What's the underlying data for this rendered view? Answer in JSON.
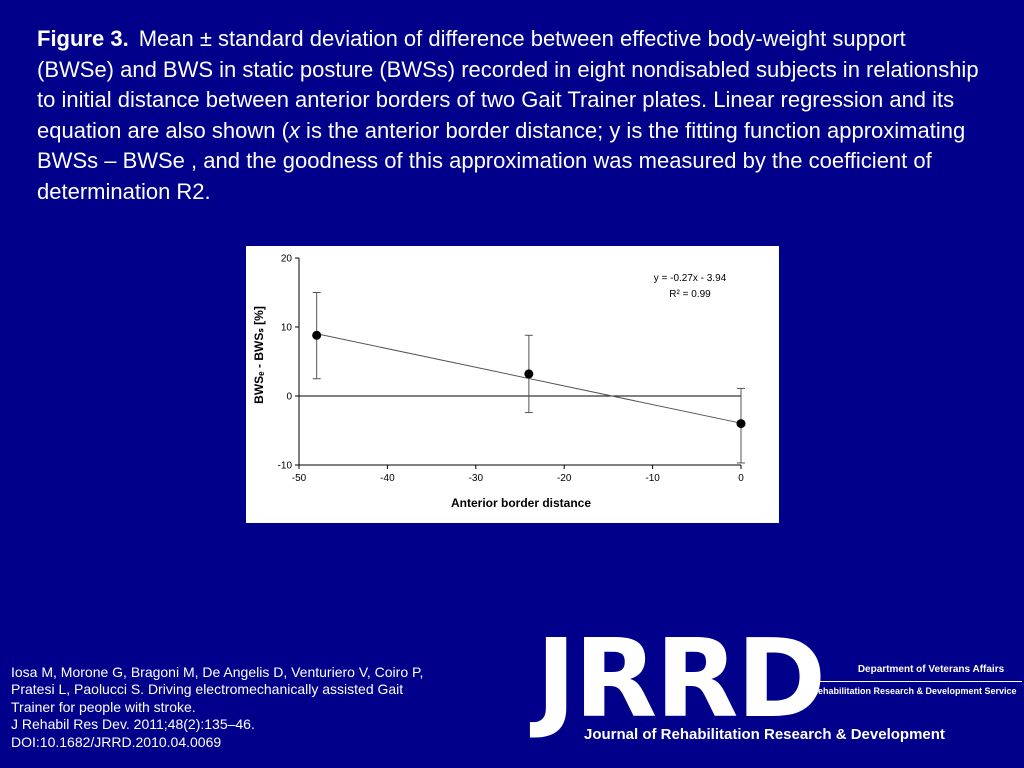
{
  "caption": {
    "label": "Figure  3.",
    "part1": "Mean ± standard deviation of difference between effective body-weight support (BWSe) and BWS in static posture (BWSs) recorded in eight nondisabled subjects in relationship to initial distance between anterior borders of two Gait Trainer plates. Linear regression and its equation are also shown (",
    "italic_x": "x",
    "part2": " is the anterior border distance; y is the fitting function approximating BWSs – BWSe , and the goodness of this approximation was measured by the coefficient of determination R2."
  },
  "chart_data": {
    "type": "scatter",
    "xlabel": "Anterior border distance",
    "ylabel": "BWSₑ - BWSₛ [%]",
    "xlim": [
      -50,
      0
    ],
    "ylim": [
      -10,
      20
    ],
    "xticks": [
      -50,
      -40,
      -30,
      -20,
      -10,
      0
    ],
    "yticks": [
      -10,
      0,
      10,
      20
    ],
    "points": [
      {
        "x": -48,
        "y": 8.8,
        "err_low": 2.5,
        "err_high": 15
      },
      {
        "x": -24,
        "y": 3.2,
        "err_low": -2.4,
        "err_high": 8.8
      },
      {
        "x": 0,
        "y": -4.0,
        "err_low": -9.7,
        "err_high": 1.1
      }
    ],
    "regression": {
      "slope": -0.27,
      "intercept": -3.94
    },
    "equation_text": "y = -0.27x - 3.94",
    "r2_text": "R² = 0.99",
    "grid": false,
    "zero_line": true
  },
  "citation": {
    "line1": "Iosa M, Morone G, Bragoni M, De Angelis D, Venturiero V, Coiro P,",
    "line2": "Pratesi L, Paolucci S. Driving electromechanically assisted Gait",
    "line3": "Trainer for people with stroke.",
    "line4": "J Rehabil Res Dev. 2011;48(2):135–46.",
    "line5": "DOI:10.1682/JRRD.2010.04.0069"
  },
  "logo": {
    "wordmark": "JRRD",
    "department": "Department of Veterans Affairs",
    "service": "Rehabilitation Research & Development Service",
    "journal": "Journal of Rehabilitation Research & Development"
  },
  "colors": {
    "background": "#00008b",
    "text": "#ffffff",
    "chart_ink": "#000000"
  }
}
